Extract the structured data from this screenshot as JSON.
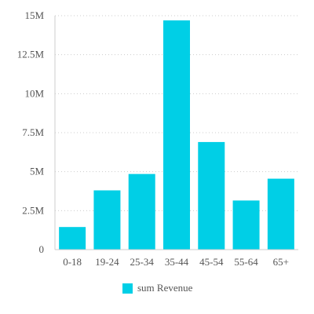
{
  "chart_data": {
    "type": "bar",
    "categories": [
      "0-18",
      "19-24",
      "25-34",
      "35-44",
      "45-54",
      "55-64",
      "65+"
    ],
    "series": [
      {
        "name": "sum Revenue",
        "values": [
          1.45,
          3.8,
          4.85,
          14.7,
          6.9,
          3.15,
          4.55
        ],
        "color": "#00cfe6"
      }
    ],
    "y_ticks": [
      "0",
      "2.5M",
      "5M",
      "7.5M",
      "10M",
      "12.5M",
      "15M"
    ],
    "ylim": [
      0,
      15
    ],
    "grid": true,
    "legend_position": "bottom"
  }
}
